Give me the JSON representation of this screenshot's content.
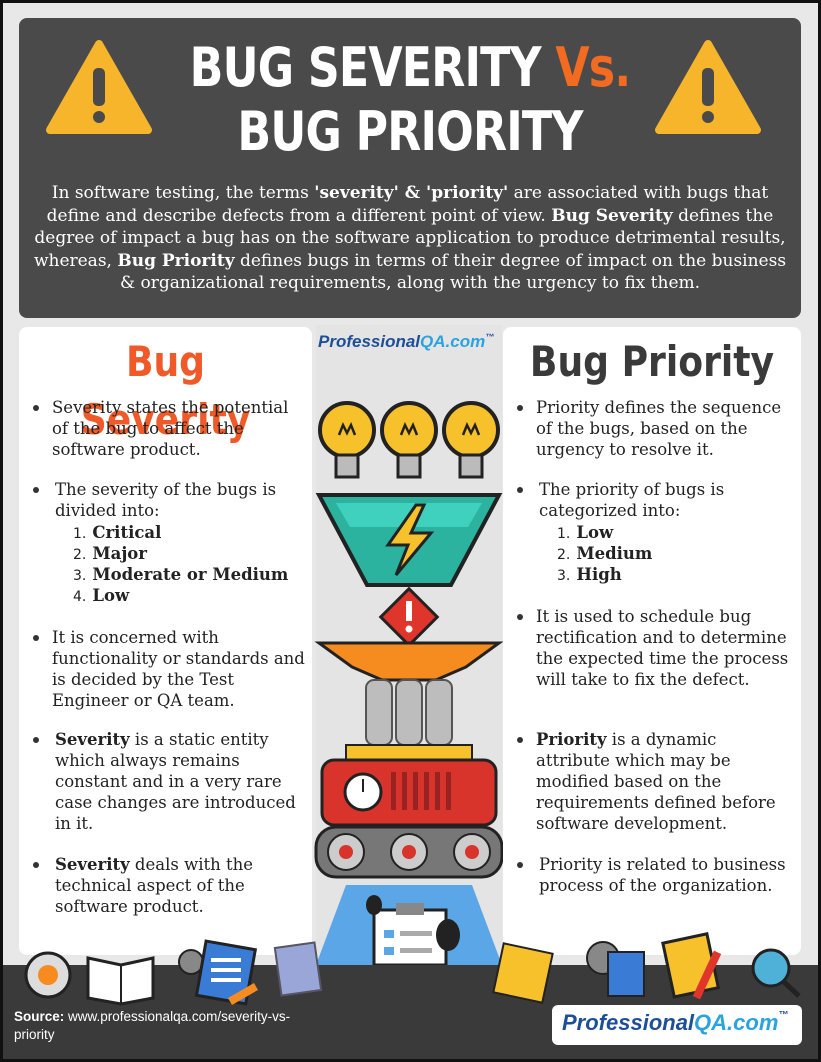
{
  "header": {
    "title_part1": "BUG SEVERITY ",
    "title_vs": "Vs.",
    "title_part2": " BUG PRIORITY",
    "intro_1": "In software testing, the terms ",
    "intro_b1": "'severity' & 'priority'",
    "intro_2": " are associated with bugs that define and describe defects from a different point of view. ",
    "intro_b2": "Bug Severity",
    "intro_3": " defines the degree of impact a bug has on the software application to produce detrimental results, whereas, ",
    "intro_b3": "Bug Priority",
    "intro_4": " defines bugs in terms of their degree of impact on the business & organizational requirements, along with the urgency to fix them."
  },
  "severity": {
    "title": "Bug Severity",
    "b1": "Severity states the potential of the bug to affect the software product.",
    "b2": "The severity of the bugs is divided into:",
    "levels": [
      "Critical",
      "Major",
      "Moderate or Medium",
      "Low"
    ],
    "b3": "It is concerned with functionality or standards and is decided by the Test Engineer or QA team.",
    "b4_bold": "Severity",
    "b4": " is a static entity which always remains constant and in a very rare case changes are introduced in it.",
    "b5_bold": "Severity",
    "b5": " deals with the technical aspect of the software product."
  },
  "priority": {
    "title": "Bug Priority",
    "b1": "Priority defines the sequence of the bugs, based on the urgency to resolve it.",
    "b2": "The priority of bugs is categorized into:",
    "levels": [
      "Low",
      "Medium",
      "High"
    ],
    "b3": "It is used to schedule bug rectification and to determine the expected time the process will take to fix the defect.",
    "b4_bold": "Priority",
    "b4": " is a dynamic attribute which may be modified based on the requirements defined before software development.",
    "b5": "Priority is related to business process of the organization."
  },
  "footer": {
    "source_label": "Source:",
    "source_url": " www.professionalqa.com/severity-vs-priority"
  },
  "logo": {
    "part1": "Professional",
    "part2": "QA.com",
    "tm": "™"
  },
  "numbers": [
    "1.",
    "2.",
    "3.",
    "4."
  ],
  "colors": {
    "accent": "#f26b21",
    "header_bg": "#4a4a4a",
    "warning": "#f7b52c",
    "bulb": "#f7c12c",
    "funnel_teal": "#2bb3a0",
    "machine_red": "#d9342b"
  }
}
